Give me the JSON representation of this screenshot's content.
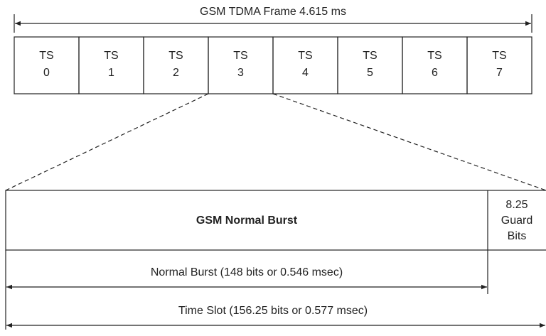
{
  "frame": {
    "title": "GSM TDMA Frame 4.615 ms",
    "slots": [
      {
        "label": "TS",
        "number": 0
      },
      {
        "label": "TS",
        "number": 1
      },
      {
        "label": "TS",
        "number": 2
      },
      {
        "label": "TS",
        "number": 3
      },
      {
        "label": "TS",
        "number": 4
      },
      {
        "label": "TS",
        "number": 5
      },
      {
        "label": "TS",
        "number": 6
      },
      {
        "label": "TS",
        "number": 7
      }
    ]
  },
  "burst": {
    "title": "GSM Normal Burst",
    "guard": [
      "8.25",
      "Guard",
      "Bits"
    ]
  },
  "dimensions": {
    "normal_burst": "Normal Burst (148 bits or 0.546 msec)",
    "time_slot": "Time Slot (156.25 bits or 0.577 msec)"
  }
}
